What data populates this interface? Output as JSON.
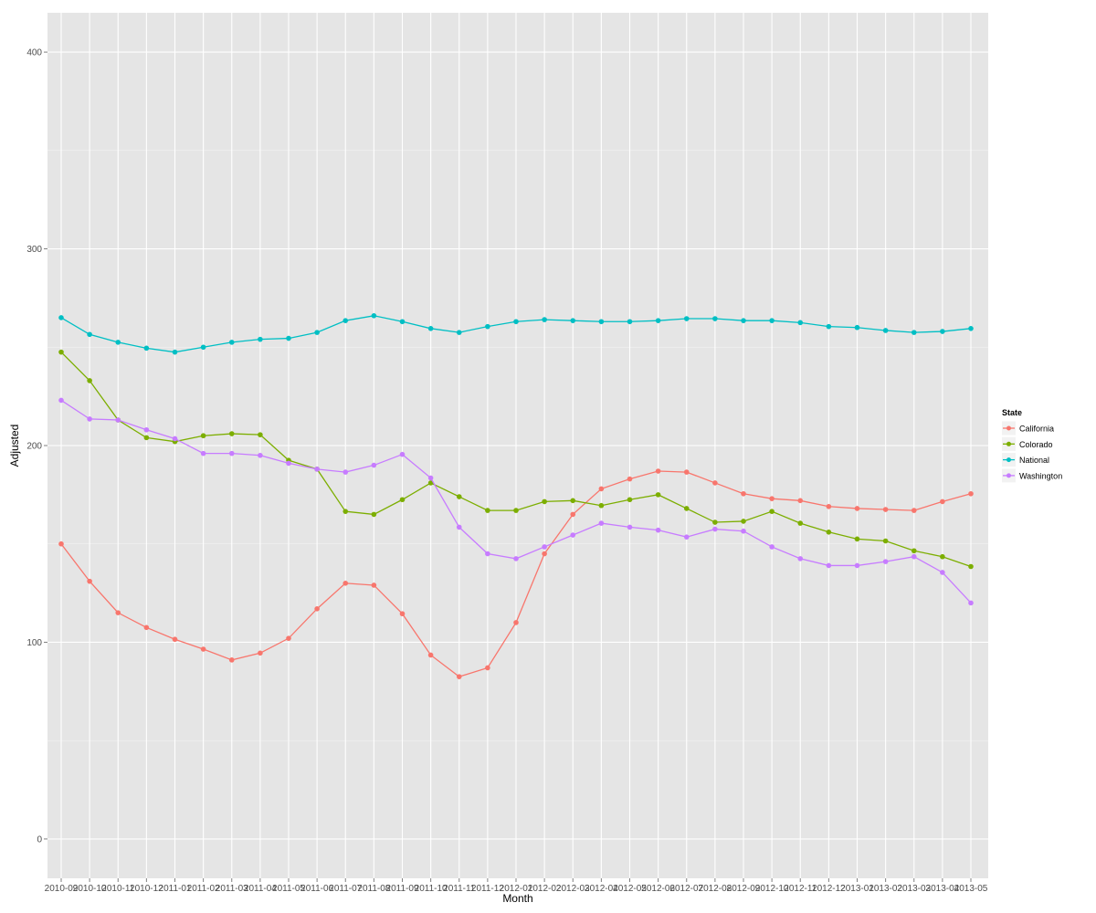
{
  "chart_data": {
    "type": "line",
    "title": "",
    "xlabel": "Month",
    "ylabel": "Adjusted",
    "ylim": [
      -20,
      420
    ],
    "yticks": [
      0,
      100,
      200,
      300,
      400
    ],
    "grid": true,
    "legend_position": "right",
    "legend_title": "State",
    "categories": [
      "2010-09",
      "2010-10",
      "2010-11",
      "2010-12",
      "2011-01",
      "2011-02",
      "2011-03",
      "2011-04",
      "2011-05",
      "2011-06",
      "2011-07",
      "2011-08",
      "2011-09",
      "2011-10",
      "2011-11",
      "2011-12",
      "2012-01",
      "2012-02",
      "2012-03",
      "2012-04",
      "2012-05",
      "2012-06",
      "2012-07",
      "2012-08",
      "2012-09",
      "2012-10",
      "2012-11",
      "2012-12",
      "2013-01",
      "2013-02",
      "2013-03",
      "2013-04",
      "2013-05"
    ],
    "series": [
      {
        "name": "California",
        "color": "#F8766D",
        "values": [
          150,
          131,
          115,
          107.5,
          101.5,
          96.5,
          91,
          94.5,
          102,
          117,
          130,
          129,
          114.5,
          93.5,
          82.5,
          87,
          110,
          145,
          165,
          178,
          183,
          187,
          186.5,
          181,
          175.5,
          173,
          172,
          169,
          168,
          167.5,
          167,
          171.5,
          175.5
        ]
      },
      {
        "name": "Colorado",
        "color": "#7CAE00",
        "values": [
          247.5,
          233,
          213,
          204,
          202,
          205,
          206,
          205.5,
          192.5,
          188,
          166.5,
          165,
          172.5,
          181,
          174,
          167,
          167,
          171.5,
          172,
          169.5,
          172.5,
          175,
          168,
          161,
          161.5,
          166.5,
          160.5,
          156,
          152.5,
          151.5,
          146.5,
          143.5,
          138.5
        ]
      },
      {
        "name": "National",
        "color": "#00BFC4",
        "values": [
          265,
          256.5,
          252.5,
          249.5,
          247.5,
          250,
          252.5,
          254,
          254.5,
          257.5,
          263.5,
          266,
          263,
          259.5,
          257.5,
          260.5,
          263,
          264,
          263.5,
          263,
          263,
          263.5,
          264.5,
          264.5,
          263.5,
          263.5,
          262.5,
          260.5,
          260,
          258.5,
          257.5,
          258,
          259.5
        ]
      },
      {
        "name": "Washington",
        "color": "#C77CFF",
        "values": [
          223,
          213.5,
          213,
          208,
          203.5,
          196,
          196,
          195,
          191,
          188,
          186.5,
          190,
          195.5,
          183.5,
          158.5,
          145,
          142.5,
          148.5,
          154.5,
          160.5,
          158.5,
          157,
          153.5,
          157.5,
          156.5,
          148.5,
          142.5,
          139,
          139,
          141,
          143.5,
          135.5,
          120
        ]
      }
    ]
  }
}
